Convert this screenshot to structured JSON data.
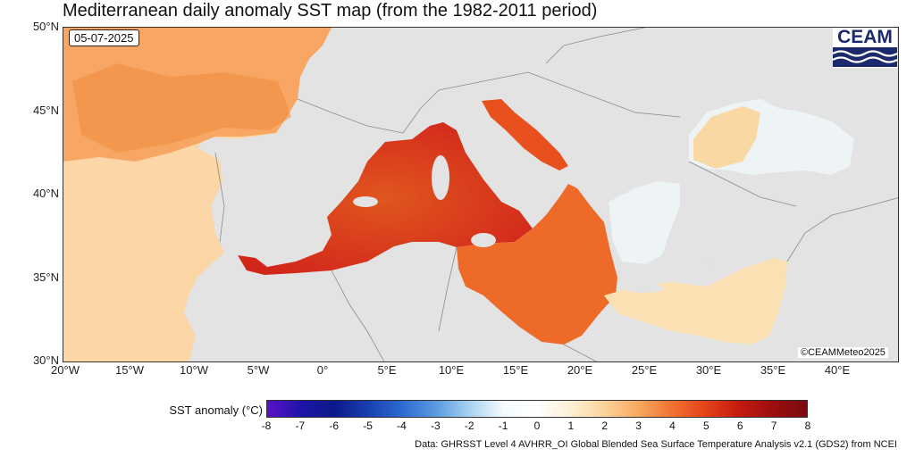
{
  "title": "Mediterranean daily anomaly SST map (from the 1982-2011 period)",
  "date": "05-07-2025",
  "logo": {
    "text": "CEAM",
    "icon": "ceam-waves-logo-icon"
  },
  "credit": "©CEAMMeteo2025",
  "axes": {
    "y_ticks": [
      "50°N",
      "45°N",
      "40°N",
      "35°N",
      "30°N"
    ],
    "x_ticks": [
      "20°W",
      "15°W",
      "10°W",
      "5°W",
      "0°",
      "5°E",
      "10°E",
      "15°E",
      "20°E",
      "25°E",
      "30°E",
      "35°E",
      "40°E"
    ]
  },
  "colorbar": {
    "label": "SST anomaly (°C)",
    "ticks": [
      "-8",
      "-7",
      "-6",
      "-5",
      "-4",
      "-3",
      "-2",
      "-1",
      "0",
      "1",
      "2",
      "3",
      "4",
      "5",
      "6",
      "7",
      "8"
    ],
    "min": -8,
    "max": 8,
    "colors": [
      "#5a12c8",
      "#1e14a8",
      "#0a1a8a",
      "#1a3fb0",
      "#2e6ad0",
      "#5a9ae0",
      "#a8d2f0",
      "#f4fafe",
      "#ffffff",
      "#fdf0d4",
      "#fbd39a",
      "#f8a860",
      "#f27232",
      "#e3421a",
      "#c41a10",
      "#9c0e0e",
      "#7a0a10"
    ]
  },
  "land_color": "#e3e3e3",
  "source": "Data: GHRSST Level 4 AVHRR_OI Global Blended Sea Surface Temperature Analysis v2.1 (GDS2) from NCEI"
}
